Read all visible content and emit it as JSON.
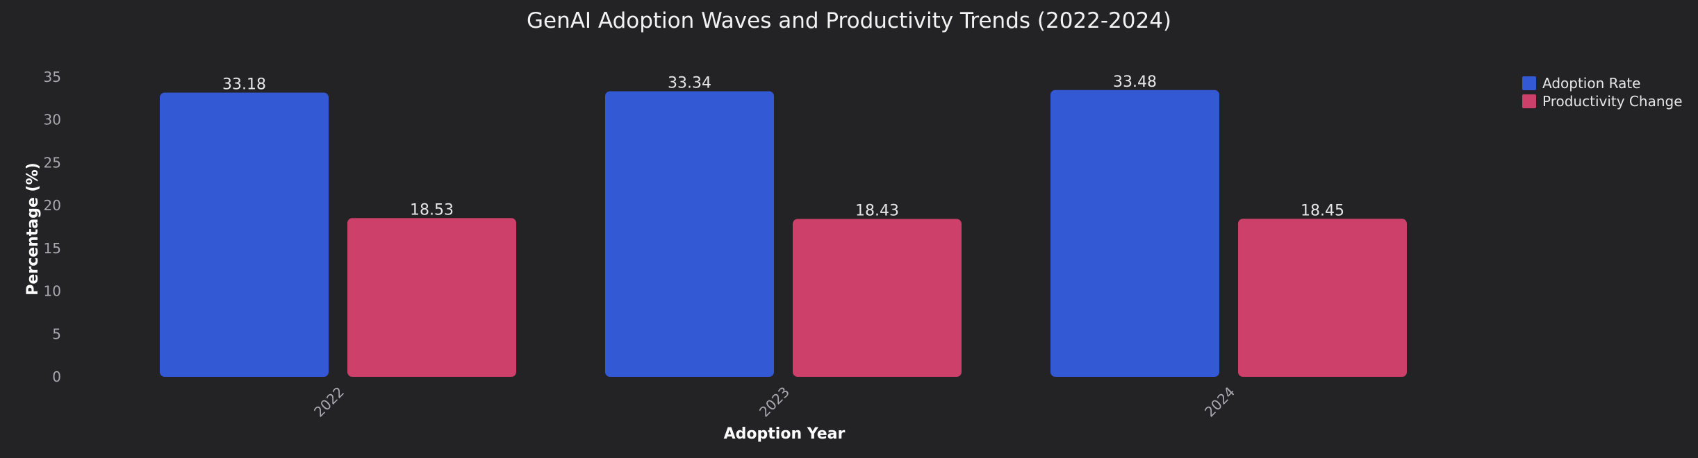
{
  "chart_data": {
    "type": "bar",
    "title": "GenAI Adoption Waves and Productivity Trends (2022-2024)",
    "xlabel": "Adoption Year",
    "ylabel": "Percentage (%)",
    "categories": [
      "2022",
      "2023",
      "2024"
    ],
    "series": [
      {
        "name": "Adoption Rate",
        "color": "#3359d4",
        "values": [
          33.18,
          33.34,
          33.48
        ]
      },
      {
        "name": "Productivity Change",
        "color": "#cc4069",
        "values": [
          18.53,
          18.43,
          18.45
        ]
      }
    ],
    "ylim": [
      0,
      35
    ],
    "yticks": [
      0,
      5,
      10,
      15,
      20,
      25,
      30,
      35
    ],
    "grid": false,
    "legend_position": "top-right",
    "background": "#232325"
  }
}
